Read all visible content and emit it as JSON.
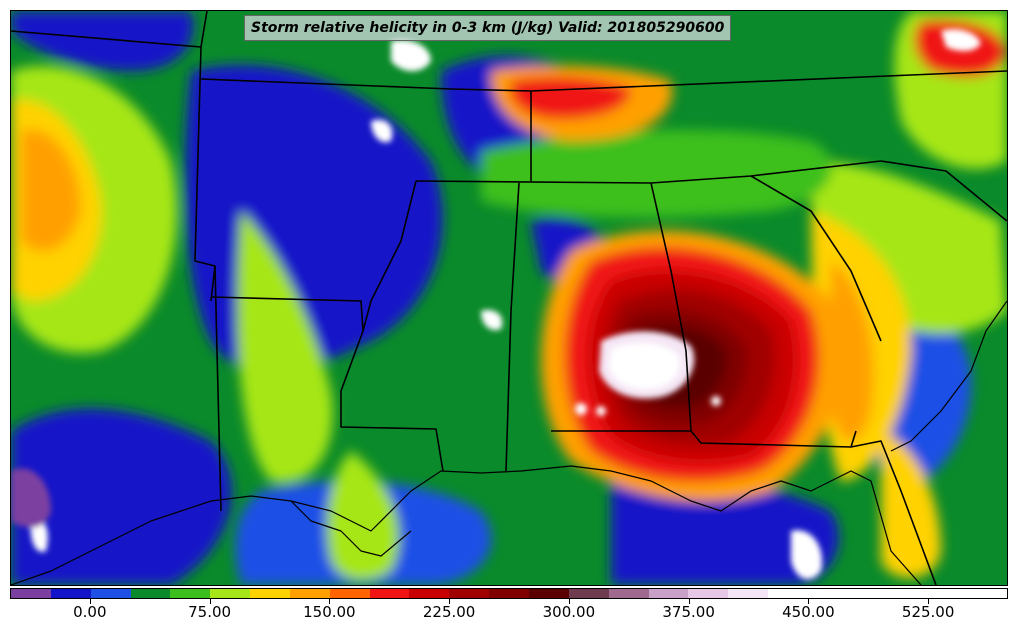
{
  "title": "Storm relative helicity in 0-3 km (J/kg) Valid: 201805290600",
  "colorbar": {
    "labels": [
      "0.00",
      "75.00",
      "150.00",
      "225.00",
      "300.00",
      "375.00",
      "450.00",
      "525.00"
    ],
    "min": -50,
    "max": 575,
    "step": 25,
    "colors": [
      "#7b3fa0",
      "#1414c8",
      "#1e50e6",
      "#0a8a2a",
      "#3cbf1e",
      "#a6e619",
      "#ffd200",
      "#ffa000",
      "#ff6400",
      "#f01414",
      "#c80000",
      "#a00000",
      "#800000",
      "#5a0000",
      "#6e3c4e",
      "#a06a8e",
      "#c8a0c8",
      "#e6c8e6",
      "#f5e6f5",
      "#ffffff",
      "#ffffff",
      "#ffffff",
      "#ffffff",
      "#ffffff",
      "#ffffff"
    ]
  },
  "chart_data": {
    "type": "heatmap",
    "title": "Storm relative helicity in 0-3 km (J/kg) Valid: 201805290600",
    "colorbar_ticks": [
      0,
      75,
      150,
      225,
      300,
      375,
      450,
      525
    ],
    "colorbar_range": [
      -50,
      575
    ],
    "colorbar_interval": 25,
    "units": "J/kg"
  }
}
